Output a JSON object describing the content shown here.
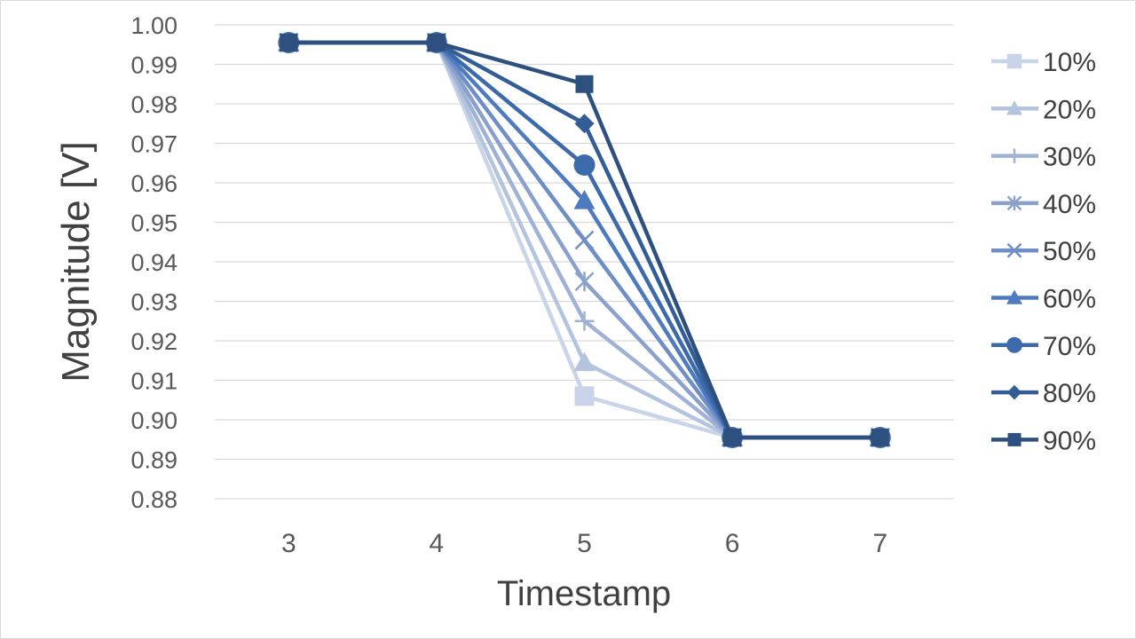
{
  "chart_data": {
    "type": "line",
    "x": [
      3,
      4,
      5,
      6,
      7
    ],
    "xlabel": "Timestamp",
    "ylabel": "Magnitude [V]",
    "ylim": [
      0.88,
      1.0
    ],
    "yticks": [
      "0.88",
      "0.89",
      "0.90",
      "0.91",
      "0.92",
      "0.93",
      "0.94",
      "0.95",
      "0.96",
      "0.97",
      "0.98",
      "0.99",
      "1.00"
    ],
    "xticks": [
      "3",
      "4",
      "5",
      "6",
      "7"
    ],
    "grid": "horizontal",
    "legend_position": "right",
    "series": [
      {
        "name": "10%",
        "marker": "square-small",
        "color": "#c9d4e8",
        "values": [
          0.9955,
          0.9955,
          0.906,
          0.8955,
          0.8955
        ]
      },
      {
        "name": "20%",
        "marker": "triangle",
        "color": "#b4c3de",
        "values": [
          0.9955,
          0.9955,
          0.9145,
          0.8955,
          0.8955
        ]
      },
      {
        "name": "30%",
        "marker": "plus",
        "color": "#9fb2d5",
        "values": [
          0.9955,
          0.9955,
          0.925,
          0.8955,
          0.8955
        ]
      },
      {
        "name": "40%",
        "marker": "star",
        "color": "#8aa1cb",
        "values": [
          0.9955,
          0.9955,
          0.935,
          0.8955,
          0.8955
        ]
      },
      {
        "name": "50%",
        "marker": "x",
        "color": "#6f8ec5",
        "values": [
          0.9955,
          0.9955,
          0.9455,
          0.8955,
          0.8955
        ]
      },
      {
        "name": "60%",
        "marker": "triangle",
        "color": "#4e7bbf",
        "values": [
          0.9955,
          0.9955,
          0.9555,
          0.8955,
          0.8955
        ]
      },
      {
        "name": "70%",
        "marker": "circle",
        "color": "#3c6aaa",
        "values": [
          0.9955,
          0.9955,
          0.9645,
          0.8955,
          0.8955
        ]
      },
      {
        "name": "80%",
        "marker": "diamond",
        "color": "#335d97",
        "values": [
          0.9955,
          0.9955,
          0.975,
          0.8955,
          0.8955
        ]
      },
      {
        "name": "90%",
        "marker": "square",
        "color": "#2e507e",
        "values": [
          0.9955,
          0.9955,
          0.985,
          0.8955,
          0.8955
        ]
      }
    ]
  }
}
